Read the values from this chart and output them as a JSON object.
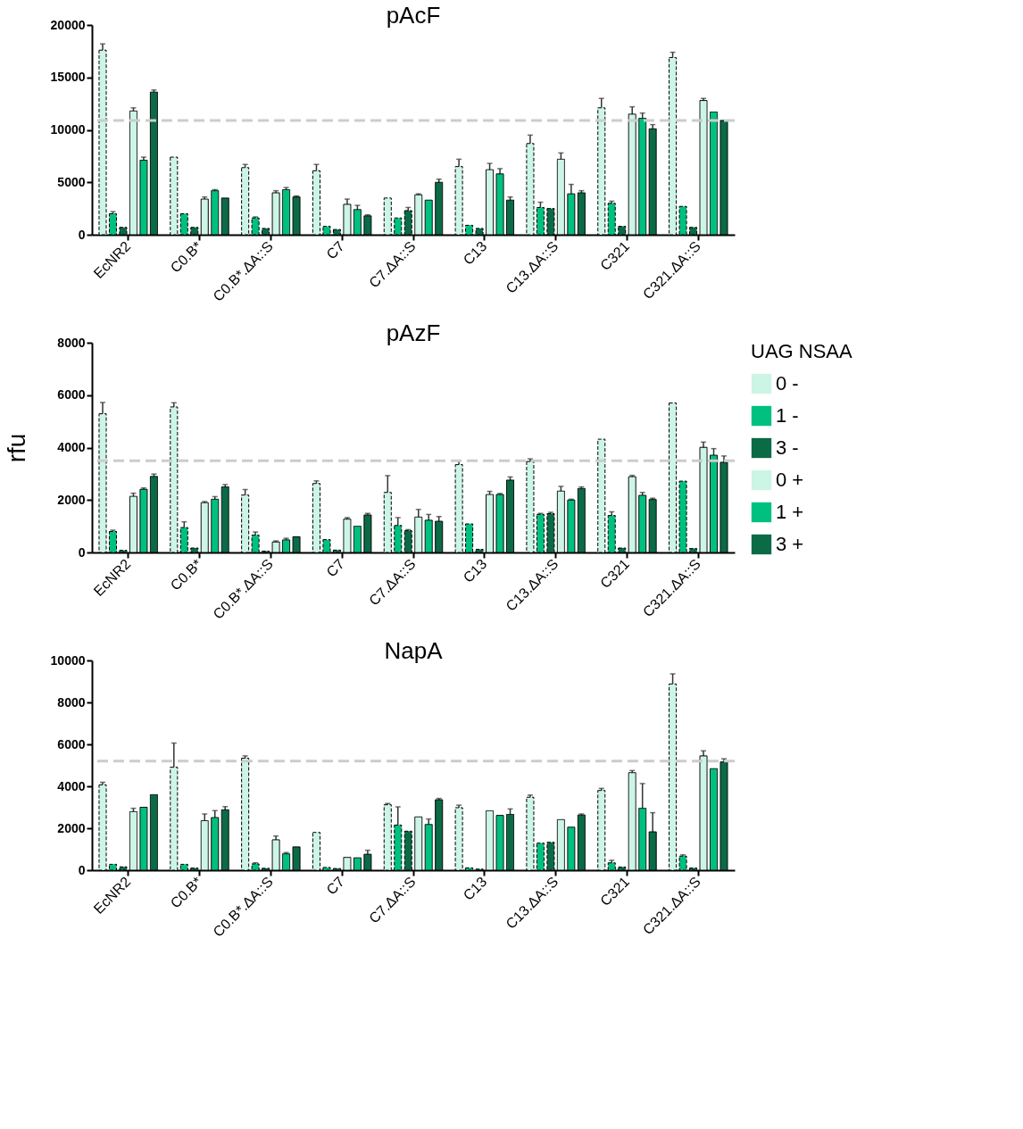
{
  "chart_data": [
    {
      "type": "bar",
      "title": "pAcF",
      "categories": [
        "EcNR2",
        "C0.B*",
        "C0.B*.ΔA::S",
        "C7",
        "C7.ΔA::S",
        "C13",
        "C13.ΔA::S",
        "C321",
        "C321.ΔA::S"
      ],
      "ylim": [
        0,
        20000
      ],
      "yticks": [
        0,
        5000,
        10000,
        15000,
        20000
      ],
      "grid": false,
      "legend": false,
      "ref_lines": [
        {
          "axis": "y",
          "value": 10900,
          "color": "#cccccc",
          "line_style": "dashed"
        }
      ],
      "series": [
        {
          "color": "#ccf5e6",
          "line_style": "dashed",
          "values": [
            17600,
            7400,
            6400,
            6100,
            3500,
            6500,
            8700,
            12100,
            16900
          ],
          "errors": [
            600,
            null,
            300,
            600,
            null,
            700,
            800,
            900,
            500
          ]
        },
        {
          "color": "#00c07f",
          "line_style": "dashed",
          "values": [
            2000,
            2000,
            1600,
            800,
            1600,
            900,
            2600,
            3000,
            2700
          ],
          "errors": [
            200,
            null,
            100,
            null,
            null,
            null,
            500,
            200,
            null
          ]
        },
        {
          "color": "#0b6b46",
          "line_style": "dashed",
          "values": [
            700,
            700,
            600,
            500,
            2300,
            600,
            2500,
            800,
            700
          ],
          "errors": [
            null,
            null,
            null,
            null,
            300,
            null,
            null,
            null,
            null
          ]
        },
        {
          "color": "#ccf5e6",
          "line_style": "solid",
          "values": [
            11800,
            3400,
            4000,
            2900,
            3800,
            6200,
            7200,
            11500,
            12800
          ],
          "errors": [
            300,
            200,
            200,
            500,
            100,
            600,
            600,
            700,
            200
          ]
        },
        {
          "color": "#00c07f",
          "line_style": "solid",
          "values": [
            7100,
            4200,
            4300,
            2400,
            3300,
            5800,
            3900,
            11100,
            11700
          ],
          "errors": [
            300,
            100,
            200,
            400,
            null,
            500,
            900,
            500,
            null
          ]
        },
        {
          "color": "#0b6b46",
          "line_style": "solid",
          "values": [
            13600,
            3500,
            3600,
            1800,
            5000,
            3300,
            4000,
            10100,
            10900
          ],
          "errors": [
            200,
            null,
            100,
            100,
            300,
            300,
            200,
            400,
            null
          ]
        }
      ]
    },
    {
      "type": "bar",
      "title": "pAzF",
      "ylabel": "rfu",
      "legend_title": "UAG NSAA",
      "categories": [
        "EcNR2",
        "C0.B*",
        "C0.B*.ΔA::S",
        "C7",
        "C7.ΔA::S",
        "C13",
        "C13.ΔA::S",
        "C321",
        "C321.ΔA::S"
      ],
      "ylim": [
        0,
        8000
      ],
      "yticks": [
        0,
        2000,
        4000,
        6000,
        8000
      ],
      "grid": false,
      "legend": "right",
      "ref_lines": [
        {
          "axis": "y",
          "value": 3500,
          "color": "#cccccc",
          "line_style": "dashed"
        }
      ],
      "series": [
        {
          "name": "0 -",
          "color": "#ccf5e6",
          "line_style": "dashed",
          "values": [
            5290,
            5550,
            2190,
            2630,
            2290,
            3350,
            3470,
            4320,
            5700
          ],
          "errors": [
            430,
            160,
            210,
            100,
            640,
            150,
            100,
            null,
            null
          ]
        },
        {
          "name": "1 -",
          "color": "#00c07f",
          "line_style": "dashed",
          "values": [
            800,
            950,
            660,
            490,
            1030,
            1090,
            1450,
            1410,
            2720
          ],
          "errors": [
            50,
            220,
            120,
            null,
            300,
            null,
            40,
            140,
            null
          ]
        },
        {
          "name": "3 -",
          "color": "#0b6b46",
          "line_style": "dashed",
          "values": [
            80,
            170,
            50,
            90,
            830,
            120,
            1480,
            170,
            150
          ],
          "errors": [
            null,
            null,
            null,
            null,
            40,
            null,
            50,
            null,
            null
          ]
        },
        {
          "name": "0 +",
          "color": "#ccf5e6",
          "line_style": "solid",
          "values": [
            2140,
            1900,
            400,
            1270,
            1350,
            2210,
            2340,
            2890,
            4010
          ],
          "errors": [
            120,
            40,
            40,
            60,
            290,
            120,
            180,
            50,
            200
          ]
        },
        {
          "name": "1 +",
          "color": "#00c07f",
          "line_style": "solid",
          "values": [
            2410,
            2030,
            480,
            1000,
            1230,
            2210,
            2000,
            2180,
            3710
          ],
          "errors": [
            50,
            100,
            60,
            null,
            220,
            40,
            30,
            110,
            250
          ]
        },
        {
          "name": "3 +",
          "color": "#0b6b46",
          "line_style": "solid",
          "values": [
            2900,
            2500,
            600,
            1430,
            1190,
            2760,
            2440,
            2020,
            3440
          ],
          "errors": [
            90,
            90,
            null,
            60,
            180,
            120,
            60,
            50,
            240
          ]
        }
      ]
    },
    {
      "type": "bar",
      "title": "NapA",
      "categories": [
        "EcNR2",
        "C0.B*",
        "C0.B*.ΔA::S",
        "C7",
        "C7.ΔA::S",
        "C13",
        "C13.ΔA::S",
        "C321",
        "C321.ΔA::S"
      ],
      "ylim": [
        0,
        10000
      ],
      "yticks": [
        0,
        2000,
        4000,
        6000,
        8000,
        10000
      ],
      "grid": false,
      "legend": false,
      "ref_lines": [
        {
          "axis": "y",
          "value": 5200,
          "color": "#cccccc",
          "line_style": "dashed"
        }
      ],
      "series": [
        {
          "color": "#ccf5e6",
          "line_style": "dashed",
          "values": [
            4070,
            4910,
            5340,
            1800,
            3120,
            2980,
            3480,
            3800,
            8880
          ],
          "errors": [
            120,
            1150,
            110,
            null,
            60,
            120,
            100,
            100,
            480
          ]
        },
        {
          "color": "#00c07f",
          "line_style": "dashed",
          "values": [
            280,
            280,
            300,
            130,
            2150,
            110,
            1290,
            350,
            670
          ],
          "errors": [
            null,
            null,
            50,
            null,
            870,
            null,
            null,
            120,
            60
          ]
        },
        {
          "color": "#0b6b46",
          "line_style": "dashed",
          "values": [
            160,
            100,
            90,
            80,
            1860,
            50,
            1330,
            150,
            100
          ]
        },
        {
          "color": "#ccf5e6",
          "line_style": "solid",
          "values": [
            2790,
            2360,
            1450,
            610,
            2540,
            2830,
            2410,
            4650,
            5450
          ],
          "errors": [
            160,
            320,
            180,
            null,
            null,
            null,
            null,
            100,
            240
          ]
        },
        {
          "color": "#00c07f",
          "line_style": "solid",
          "values": [
            3000,
            2510,
            780,
            590,
            2180,
            2610,
            2050,
            2950,
            4840
          ],
          "errors": [
            null,
            330,
            60,
            null,
            260,
            null,
            null,
            1180,
            null
          ]
        },
        {
          "color": "#0b6b46",
          "line_style": "solid",
          "values": [
            3600,
            2880,
            1110,
            760,
            3360,
            2660,
            2630,
            1830,
            5160
          ],
          "errors": [
            null,
            150,
            null,
            190,
            60,
            260,
            50,
            910,
            150
          ]
        }
      ]
    }
  ]
}
